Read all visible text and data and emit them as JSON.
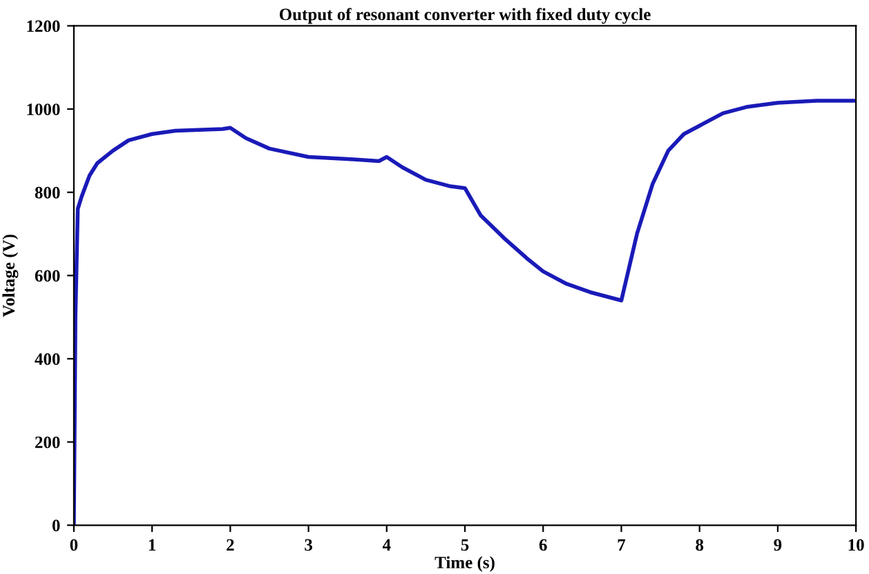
{
  "chart_data": {
    "type": "line",
    "title": "Output of resonant converter with fixed duty cycle",
    "xlabel": "Time (s)",
    "ylabel": "Voltage (V)",
    "series": [
      {
        "color": "#1a1ab8",
        "x": [
          0,
          0.02,
          0.05,
          0.1,
          0.2,
          0.3,
          0.5,
          0.7,
          1,
          1.3,
          1.6,
          1.9,
          2,
          2.2,
          2.5,
          3,
          3.5,
          3.9,
          4,
          4.2,
          4.5,
          4.8,
          5,
          5.2,
          5.5,
          5.8,
          6,
          6.3,
          6.6,
          6.9,
          7,
          7.1,
          7.2,
          7.4,
          7.6,
          7.8,
          8,
          8.3,
          8.6,
          9,
          9.5,
          10
        ],
        "values": [
          0,
          500,
          760,
          790,
          840,
          870,
          900,
          925,
          940,
          948,
          950,
          952,
          955,
          930,
          905,
          885,
          880,
          875,
          885,
          860,
          830,
          815,
          810,
          745,
          690,
          640,
          610,
          580,
          560,
          545,
          540,
          620,
          700,
          820,
          900,
          940,
          960,
          990,
          1005,
          1015,
          1020,
          1020
        ]
      }
    ],
    "xlim": [
      0,
      10
    ],
    "ylim": [
      0,
      1200
    ],
    "xticks": [
      0,
      1,
      2,
      3,
      4,
      5,
      6,
      7,
      8,
      9,
      10
    ],
    "yticks": [
      0,
      200,
      400,
      600,
      800,
      1000,
      1200
    ],
    "grid": false,
    "line_style": "solid",
    "marker": "none"
  }
}
